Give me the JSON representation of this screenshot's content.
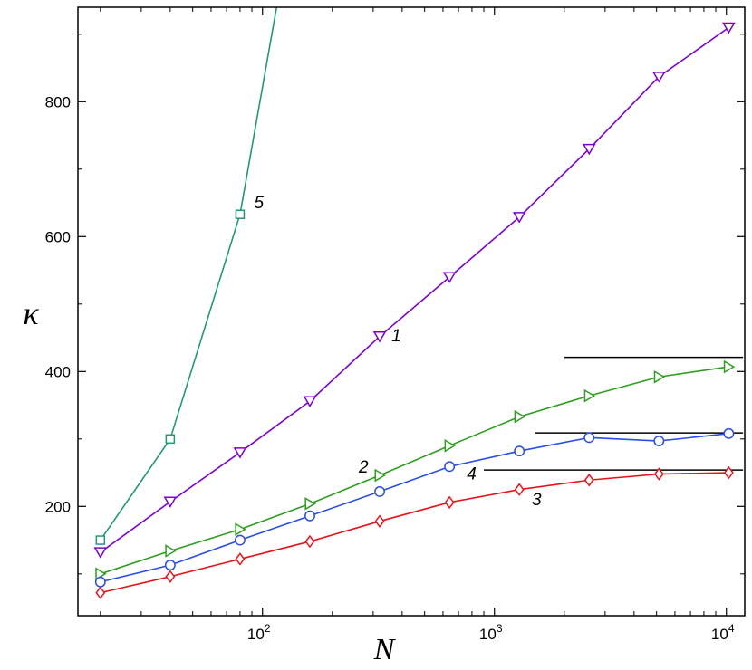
{
  "chart_data": {
    "type": "line",
    "title": "",
    "xlabel": "N",
    "ylabel": "κ",
    "xscale": "log",
    "xlim": [
      16,
      12000
    ],
    "ylim": [
      38,
      940
    ],
    "yticks": [
      200,
      400,
      600,
      800
    ],
    "xticks": [
      {
        "value": 100,
        "base": "10",
        "exp": "2"
      },
      {
        "value": 1000,
        "base": "10",
        "exp": "3"
      },
      {
        "value": 10000,
        "base": "10",
        "exp": "4"
      }
    ],
    "grid": false,
    "series": [
      {
        "name": "1",
        "color": "#7b00d4",
        "marker": "triangle-down",
        "x": [
          20,
          40,
          80,
          160,
          320,
          640,
          1280,
          2560,
          5120,
          10240
        ],
        "y": [
          132,
          207,
          280,
          356,
          452,
          540,
          629,
          730,
          837,
          910
        ]
      },
      {
        "name": "2",
        "color": "#2ca01c",
        "marker": "triangle-right",
        "x": [
          20,
          40,
          80,
          160,
          320,
          640,
          1280,
          2560,
          5120,
          10240
        ],
        "y": [
          100,
          134,
          166,
          204,
          246,
          290,
          333,
          364,
          392,
          407
        ]
      },
      {
        "name": "3",
        "color": "#e8141a",
        "marker": "diamond",
        "x": [
          20,
          40,
          80,
          160,
          320,
          640,
          1280,
          2560,
          5120,
          10240
        ],
        "y": [
          72,
          96,
          122,
          148,
          178,
          206,
          225,
          239,
          248,
          250
        ]
      },
      {
        "name": "4",
        "color": "#2a4ee8",
        "marker": "circle",
        "x": [
          20,
          40,
          80,
          160,
          320,
          640,
          1280,
          2560,
          5120,
          10240
        ],
        "y": [
          88,
          113,
          150,
          186,
          222,
          259,
          282,
          302,
          297,
          308
        ]
      },
      {
        "name": "5",
        "color": "#1f9a78",
        "marker": "square",
        "x": [
          20,
          40,
          80,
          115
        ],
        "y": [
          150,
          300,
          633,
          940
        ]
      }
    ],
    "reference_lines": [
      {
        "y": 421,
        "x_from": 2000,
        "x_to": 11800,
        "color": "#000000"
      },
      {
        "y": 309,
        "x_from": 1500,
        "x_to": 11800,
        "color": "#000000"
      },
      {
        "y": 254,
        "x_from": 900,
        "x_to": 11800,
        "color": "#000000"
      }
    ],
    "annotations": [
      {
        "text": "1",
        "series": "1"
      },
      {
        "text": "2",
        "series": "2"
      },
      {
        "text": "3",
        "series": "3"
      },
      {
        "text": "4",
        "series": "4"
      },
      {
        "text": "5",
        "series": "5"
      }
    ]
  }
}
